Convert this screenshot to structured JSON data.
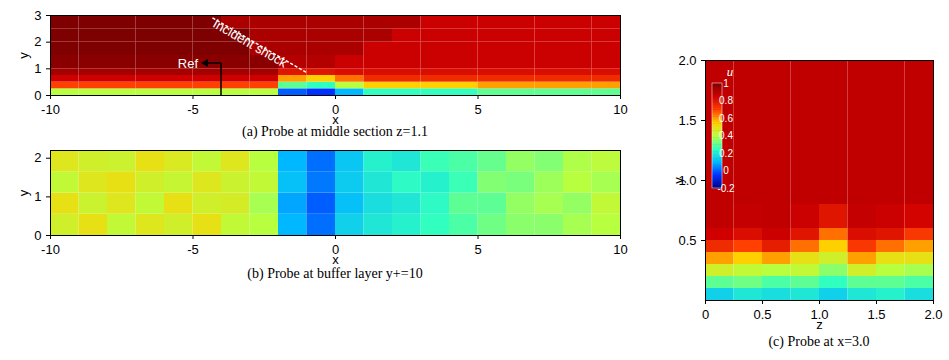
{
  "chart_data": [
    {
      "type": "heatmap",
      "caption": "(a) Probe at middle section z=1.1",
      "xlabel": "x",
      "ylabel": "y",
      "xlim": [
        -10,
        10
      ],
      "ylim": [
        0,
        3
      ],
      "xticks": [
        -10,
        -5,
        0,
        5,
        10
      ],
      "yticks": [
        0,
        1,
        2,
        3
      ],
      "x_edges": [
        -10,
        -9,
        -8,
        -7,
        -6,
        -5,
        -4,
        -3,
        -2,
        -1,
        0,
        1,
        2,
        3,
        4,
        5,
        6,
        7,
        8,
        9,
        10
      ],
      "y_edges": [
        0,
        0.25,
        0.5,
        0.75,
        1,
        1.5,
        2,
        2.5,
        3
      ],
      "cells": [
        [
          0.4,
          0.4,
          0.4,
          0.4,
          0.4,
          0.4,
          0.4,
          0.4,
          0.0,
          -0.05,
          0.1,
          0.25,
          0.25,
          0.25,
          0.25,
          0.3,
          0.3,
          0.3,
          0.3,
          0.3
        ],
        [
          0.7,
          0.7,
          0.7,
          0.7,
          0.7,
          0.7,
          0.7,
          0.7,
          0.3,
          0.25,
          0.4,
          0.55,
          0.55,
          0.55,
          0.55,
          0.6,
          0.6,
          0.6,
          0.6,
          0.6
        ],
        [
          0.85,
          0.85,
          0.85,
          0.85,
          0.85,
          0.85,
          0.85,
          0.85,
          0.6,
          0.55,
          0.65,
          0.75,
          0.75,
          0.75,
          0.75,
          0.75,
          0.75,
          0.75,
          0.75,
          0.75
        ],
        [
          0.93,
          0.93,
          0.93,
          0.93,
          0.93,
          0.93,
          0.93,
          0.93,
          0.8,
          0.8,
          0.82,
          0.82,
          0.82,
          0.82,
          0.82,
          0.82,
          0.82,
          0.82,
          0.82,
          0.82
        ],
        [
          0.98,
          0.98,
          0.98,
          0.98,
          0.98,
          0.98,
          0.98,
          0.98,
          0.9,
          0.9,
          0.86,
          0.86,
          0.86,
          0.86,
          0.86,
          0.86,
          0.86,
          0.86,
          0.86,
          0.86
        ],
        [
          1,
          1,
          1,
          1,
          1,
          1,
          1,
          0.92,
          0.92,
          0.92,
          0.92,
          0.86,
          0.86,
          0.86,
          0.86,
          0.86,
          0.86,
          0.86,
          0.86,
          0.86
        ],
        [
          1,
          1,
          1,
          1,
          1,
          1,
          1,
          0.92,
          0.92,
          0.92,
          0.92,
          0.92,
          0.86,
          0.86,
          0.86,
          0.86,
          0.86,
          0.86,
          0.86,
          0.86
        ],
        [
          1,
          1,
          1,
          1,
          1,
          1,
          0.92,
          0.92,
          0.92,
          0.92,
          0.92,
          0.92,
          0.92,
          0.86,
          0.86,
          0.86,
          0.86,
          0.86,
          0.86,
          0.86
        ]
      ],
      "incident_shock": {
        "text": "Incident shock",
        "x": [
          -4.3,
          -1.0
        ],
        "y": [
          2.9,
          0.85
        ],
        "label_x": -3.0,
        "label_y": 1.95
      },
      "ref": {
        "text": "Ref",
        "x": -4,
        "y": 1.2
      }
    },
    {
      "type": "heatmap",
      "caption": "(b) Probe at buffer layer y+=10",
      "xlabel": "x",
      "ylabel": "y",
      "xlim": [
        -10,
        10
      ],
      "ylim": [
        0,
        2.2
      ],
      "xticks": [
        -10,
        -5,
        0,
        5,
        10
      ],
      "yticks": [
        0,
        1,
        2
      ],
      "x_edges": [
        -10,
        -9,
        -8,
        -7,
        -6,
        -5,
        -4,
        -3,
        -2,
        -1,
        0,
        1,
        2,
        3,
        4,
        5,
        6,
        7,
        8,
        9,
        10
      ],
      "y_edges": [
        0,
        0.55,
        1.1,
        1.65,
        2.2
      ],
      "cells": [
        [
          0.45,
          0.5,
          0.42,
          0.48,
          0.45,
          0.5,
          0.42,
          0.4,
          0.1,
          0.02,
          0.15,
          0.2,
          0.22,
          0.25,
          0.28,
          0.32,
          0.35,
          0.35,
          0.38,
          0.4
        ],
        [
          0.5,
          0.44,
          0.48,
          0.42,
          0.5,
          0.45,
          0.46,
          0.38,
          0.08,
          0.0,
          0.12,
          0.18,
          0.2,
          0.24,
          0.3,
          0.3,
          0.36,
          0.38,
          0.36,
          0.42
        ],
        [
          0.42,
          0.48,
          0.5,
          0.45,
          0.43,
          0.48,
          0.44,
          0.42,
          0.12,
          0.03,
          0.14,
          0.2,
          0.24,
          0.22,
          0.26,
          0.34,
          0.33,
          0.37,
          0.4,
          0.38
        ],
        [
          0.48,
          0.45,
          0.44,
          0.5,
          0.47,
          0.42,
          0.48,
          0.4,
          0.1,
          0.02,
          0.13,
          0.22,
          0.2,
          0.26,
          0.28,
          0.31,
          0.36,
          0.34,
          0.39,
          0.41
        ]
      ]
    },
    {
      "type": "heatmap",
      "caption": "(c) Probe at x=3.0",
      "xlabel": "z",
      "ylabel": "y",
      "xlim": [
        0,
        2
      ],
      "ylim": [
        0,
        2
      ],
      "xticks": [
        0,
        0.5,
        {
          "value": 1,
          "label": "1.0"
        },
        1.5,
        {
          "value": 2,
          "label": "2.0"
        }
      ],
      "yticks": [
        0.5,
        {
          "value": 1,
          "label": "1.0"
        },
        1.5,
        {
          "value": 2,
          "label": "2.0"
        }
      ],
      "x_edges": [
        0,
        0.25,
        0.5,
        0.75,
        1,
        1.25,
        1.5,
        1.75,
        2
      ],
      "y_edges": [
        0,
        0.1,
        0.2,
        0.3,
        0.4,
        0.5,
        0.6,
        0.8,
        1,
        1.5,
        2
      ],
      "cells": [
        [
          0.15,
          0.2,
          0.18,
          0.2,
          0.15,
          0.2,
          0.22,
          0.18
        ],
        [
          0.3,
          0.32,
          0.28,
          0.3,
          0.25,
          0.3,
          0.3,
          0.28
        ],
        [
          0.45,
          0.42,
          0.4,
          0.42,
          0.35,
          0.45,
          0.4,
          0.38
        ],
        [
          0.6,
          0.55,
          0.6,
          0.5,
          0.45,
          0.6,
          0.5,
          0.5
        ],
        [
          0.75,
          0.7,
          0.78,
          0.65,
          0.55,
          0.72,
          0.65,
          0.6
        ],
        [
          0.85,
          0.82,
          0.86,
          0.8,
          0.65,
          0.82,
          0.8,
          0.72
        ],
        [
          0.88,
          0.87,
          0.88,
          0.86,
          0.8,
          0.87,
          0.86,
          0.84
        ],
        [
          0.88,
          0.88,
          0.88,
          0.88,
          0.88,
          0.88,
          0.88,
          0.88
        ],
        [
          0.88,
          0.88,
          0.88,
          0.88,
          0.88,
          0.88,
          0.88,
          0.88
        ],
        [
          0.88,
          0.88,
          0.88,
          0.88,
          0.88,
          0.88,
          0.88,
          0.88
        ]
      ],
      "colorbar": {
        "title": "u",
        "range": [
          -0.2,
          1
        ],
        "ticks": [
          -0.2,
          0,
          0.2,
          0.4,
          0.6,
          0.8,
          1
        ]
      }
    }
  ]
}
